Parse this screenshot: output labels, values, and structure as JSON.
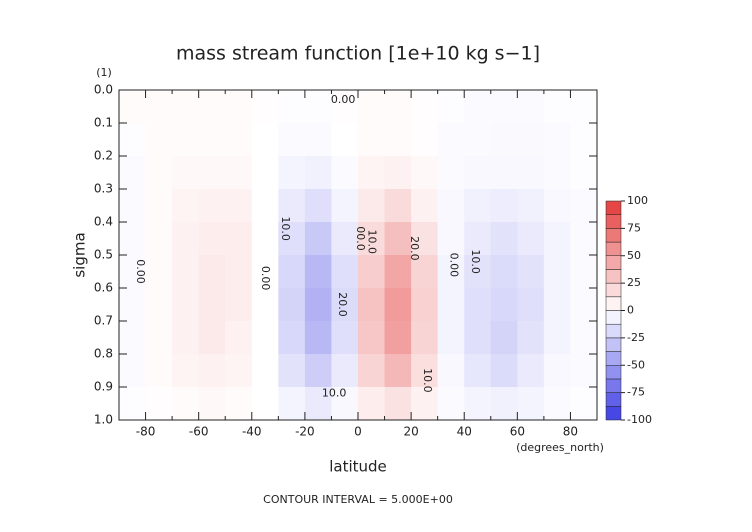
{
  "chart_data": {
    "type": "contour",
    "title": "mass stream function [1e+10 kg s−1]",
    "y_unit": "(1)",
    "xlabel": "latitude",
    "x_unit": "(degrees_north)",
    "ylabel": "sigma",
    "footer": "CONTOUR INTERVAL = 5.000E+00",
    "xlim": [
      -90,
      90
    ],
    "xticks": [
      -80,
      -60,
      -40,
      -20,
      0,
      20,
      40,
      60,
      80
    ],
    "x_minor_ticks": [
      -90,
      -70,
      -50,
      -30,
      -10,
      10,
      30,
      50,
      70,
      90
    ],
    "ylim": [
      0,
      1
    ],
    "y_inverted": true,
    "yticks": [
      {
        "value": 0,
        "label": "0.0"
      },
      {
        "value": 0.1,
        "label": "0.1"
      },
      {
        "value": 0.2,
        "label": "0.2"
      },
      {
        "value": 0.3,
        "label": "0.3"
      },
      {
        "value": 0.4,
        "label": "0.4"
      },
      {
        "value": 0.5,
        "label": "0.5"
      },
      {
        "value": 0.6,
        "label": "0.6"
      },
      {
        "value": 0.7,
        "label": "0.7"
      },
      {
        "value": 0.8,
        "label": "0.8"
      },
      {
        "value": 0.9,
        "label": "0.9"
      },
      {
        "value": 1,
        "label": "1.0"
      }
    ],
    "x": [
      -85,
      -75,
      -65,
      -55,
      -45,
      -35,
      -25,
      -15,
      -5,
      5,
      15,
      25,
      35,
      45,
      55,
      65,
      75,
      85
    ],
    "y": [
      0.05,
      0.15,
      0.25,
      0.35,
      0.45,
      0.55,
      0.65,
      0.75,
      0.85,
      0.95
    ],
    "z": [
      [
        1,
        1,
        1,
        1,
        1,
        0.5,
        -0.5,
        -0.5,
        0.5,
        1,
        1,
        0.5,
        -0.5,
        -1,
        -1,
        -1,
        -0.5,
        -0.5
      ],
      [
        -0.5,
        1,
        1,
        1,
        1,
        0,
        -1,
        -1,
        0,
        1,
        1,
        0.5,
        -1,
        -1,
        -1.5,
        -1.5,
        -1,
        -0.5
      ],
      [
        -1,
        1,
        2,
        2,
        2,
        0,
        -3,
        -4,
        -1,
        3,
        4,
        2,
        -1,
        -2,
        -2,
        -2,
        -1,
        -0.5
      ],
      [
        -1,
        1,
        3,
        4,
        4,
        0,
        -6,
        -9,
        -3,
        6,
        10,
        4,
        -2,
        -4,
        -5,
        -4,
        -2,
        -1
      ],
      [
        -1,
        1,
        4,
        5,
        5,
        0,
        -9,
        -15,
        -6,
        10,
        18,
        8,
        -2,
        -6,
        -8,
        -6,
        -3,
        -1
      ],
      [
        -1,
        1,
        4,
        6,
        5,
        0,
        -11,
        -20,
        -9,
        14,
        25,
        12,
        -3,
        -8,
        -10,
        -8,
        -3,
        -1
      ],
      [
        -1,
        1,
        4,
        6,
        5,
        0,
        -12,
        -22,
        -10,
        17,
        28,
        13,
        -3,
        -9,
        -11,
        -9,
        -3,
        -1
      ],
      [
        -1,
        1,
        4,
        6,
        4,
        0,
        -11,
        -20,
        -9,
        16,
        27,
        12,
        -3,
        -9,
        -12,
        -8,
        -3,
        -1
      ],
      [
        -1,
        1,
        3,
        4,
        3,
        0,
        -8,
        -14,
        -6,
        12,
        20,
        9,
        -2,
        -7,
        -10,
        -6,
        -2,
        -1
      ],
      [
        -0.5,
        0.5,
        1,
        2,
        1,
        0,
        -3,
        -6,
        -2,
        5,
        8,
        4,
        -1,
        -3,
        -4,
        -3,
        -1,
        -0.5
      ]
    ],
    "positive_color": "#e02020",
    "negative_color": "#2020e0",
    "colorbar": {
      "lim": [
        -100,
        100
      ],
      "ticks": [
        100,
        75,
        50,
        25,
        0,
        -25,
        -50,
        -75,
        -100
      ],
      "step": 12.5
    },
    "contour_labels": [
      {
        "text": "0.00",
        "x": -5.6,
        "y": 0.03,
        "rotated": false
      },
      {
        "text": "0.00",
        "x": -82,
        "y": 0.55,
        "rotated": true
      },
      {
        "text": "0.00",
        "x": -35,
        "y": 0.57,
        "rotated": true
      },
      {
        "text": "10.0",
        "x": -27.5,
        "y": 0.42,
        "rotated": true
      },
      {
        "text": "20.0",
        "x": -6,
        "y": 0.65,
        "rotated": true
      },
      {
        "text": "00.0",
        "x": 0.7,
        "y": 0.45,
        "rotated": true
      },
      {
        "text": "10.0",
        "x": 5,
        "y": 0.46,
        "rotated": true
      },
      {
        "text": "20.0",
        "x": 21,
        "y": 0.48,
        "rotated": true
      },
      {
        "text": "0.00",
        "x": 36,
        "y": 0.53,
        "rotated": true
      },
      {
        "text": "10.0",
        "x": 44,
        "y": 0.52,
        "rotated": true
      },
      {
        "text": "10.0",
        "x": -9,
        "y": 0.92,
        "rotated": false
      },
      {
        "text": "10.0",
        "x": 26,
        "y": 0.88,
        "rotated": true
      }
    ]
  }
}
